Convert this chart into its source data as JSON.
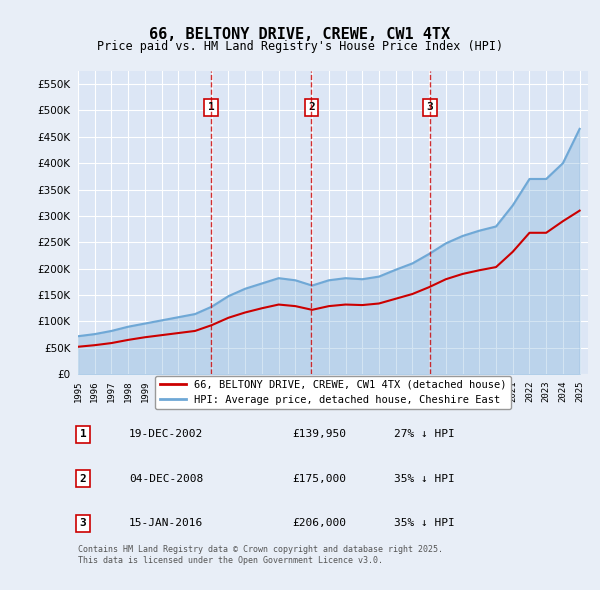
{
  "title": "66, BELTONY DRIVE, CREWE, CW1 4TX",
  "subtitle": "Price paid vs. HM Land Registry's House Price Index (HPI)",
  "xlabel": "",
  "ylabel": "",
  "ylim": [
    0,
    575000
  ],
  "yticks": [
    0,
    50000,
    100000,
    150000,
    200000,
    250000,
    300000,
    350000,
    400000,
    450000,
    500000,
    550000
  ],
  "ytick_labels": [
    "£0",
    "£50K",
    "£100K",
    "£150K",
    "£200K",
    "£250K",
    "£300K",
    "£350K",
    "£400K",
    "£450K",
    "£500K",
    "£550K"
  ],
  "background_color": "#e8eef7",
  "plot_bg_color": "#dce6f5",
  "grid_color": "#ffffff",
  "hpi_color": "#6fa8d6",
  "price_color": "#cc0000",
  "vline_color": "#cc0000",
  "sale_dates": [
    "2002-12-19",
    "2008-12-04",
    "2016-01-15"
  ],
  "sale_prices": [
    139950,
    175000,
    206000
  ],
  "legend_label_price": "66, BELTONY DRIVE, CREWE, CW1 4TX (detached house)",
  "legend_label_hpi": "HPI: Average price, detached house, Cheshire East",
  "table_data": [
    {
      "num": "1",
      "date": "19-DEC-2002",
      "price": "£139,950",
      "pct": "27% ↓ HPI"
    },
    {
      "num": "2",
      "date": "04-DEC-2008",
      "price": "£175,000",
      "pct": "35% ↓ HPI"
    },
    {
      "num": "3",
      "date": "15-JAN-2016",
      "price": "£206,000",
      "pct": "35% ↓ HPI"
    }
  ],
  "footnote": "Contains HM Land Registry data © Crown copyright and database right 2025.\nThis data is licensed under the Open Government Licence v3.0.",
  "hpi_years": [
    1995,
    1996,
    1997,
    1998,
    1999,
    2000,
    2001,
    2002,
    2003,
    2004,
    2005,
    2006,
    2007,
    2008,
    2009,
    2010,
    2011,
    2012,
    2013,
    2014,
    2015,
    2016,
    2017,
    2018,
    2019,
    2020,
    2021,
    2022,
    2023,
    2024,
    2025
  ],
  "hpi_values": [
    72000,
    76000,
    82000,
    90000,
    96000,
    102000,
    108000,
    114000,
    128000,
    148000,
    162000,
    172000,
    182000,
    178000,
    168000,
    178000,
    182000,
    180000,
    185000,
    198000,
    210000,
    228000,
    248000,
    262000,
    272000,
    280000,
    320000,
    370000,
    370000,
    400000,
    465000
  ],
  "price_years": [
    1995,
    1996,
    1997,
    1998,
    1999,
    2000,
    2001,
    2002,
    2003,
    2004,
    2005,
    2006,
    2007,
    2008,
    2009,
    2010,
    2011,
    2012,
    2013,
    2014,
    2015,
    2016,
    2017,
    2018,
    2019,
    2020,
    2021,
    2022,
    2023,
    2024,
    2025
  ],
  "price_values": [
    52000,
    55000,
    59000,
    65000,
    70000,
    74000,
    78000,
    82000,
    93000,
    107000,
    117000,
    125000,
    132000,
    129000,
    122000,
    129000,
    132000,
    131000,
    134000,
    143000,
    152000,
    165000,
    180000,
    190000,
    197000,
    203000,
    232000,
    268000,
    268000,
    290000,
    310000
  ]
}
